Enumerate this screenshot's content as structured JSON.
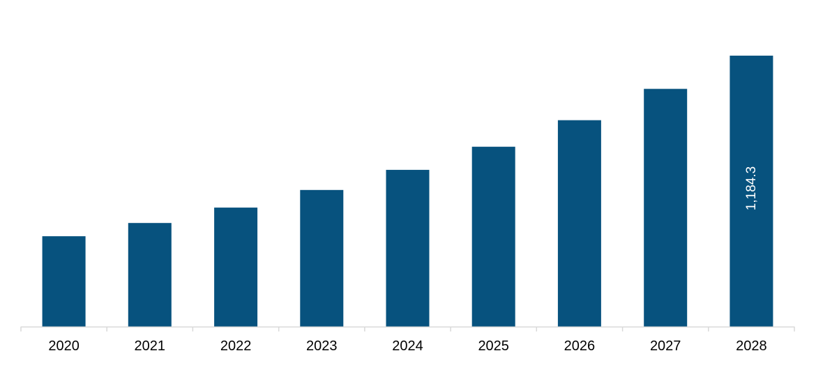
{
  "chart_data": {
    "type": "bar",
    "title": "",
    "xlabel": "",
    "ylabel": "",
    "categories": [
      "2020",
      "2021",
      "2022",
      "2023",
      "2024",
      "2025",
      "2026",
      "2027",
      "2028"
    ],
    "values": [
      395,
      453,
      520,
      597,
      685,
      786,
      902,
      1039,
      1184.3
    ],
    "data_labels": [
      {
        "category": "2028",
        "text": "1,184.3",
        "orientation": "vertical",
        "position": "inside"
      }
    ],
    "ylim": [
      0,
      1400
    ],
    "grid": false,
    "legend": "none",
    "colors": {
      "bar": "#07527e",
      "axis": "#d9d9d9",
      "tick_text": "#000000",
      "data_label_text": "#ffffff"
    }
  }
}
